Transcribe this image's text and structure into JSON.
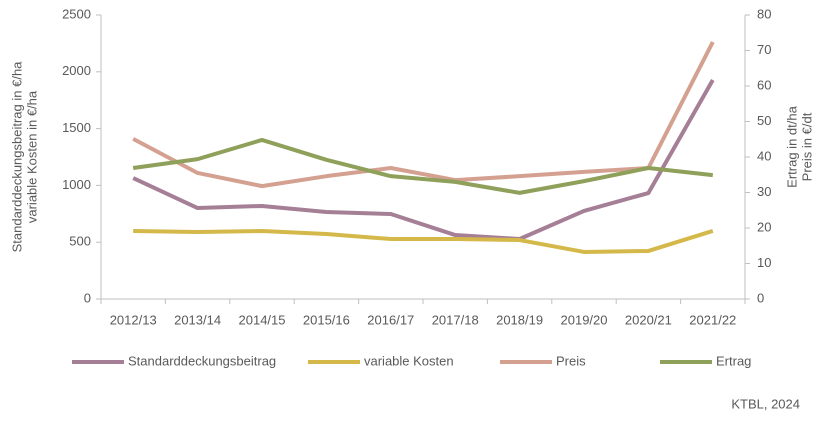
{
  "chart_data": {
    "type": "line",
    "categories": [
      "2012/13",
      "2013/14",
      "2014/15",
      "2015/16",
      "2016/17",
      "2017/18",
      "2018/19",
      "2019/20",
      "2020/21",
      "2021/22"
    ],
    "series": [
      {
        "name": "Standarddeckungsbeitrag",
        "color": "#a57f96",
        "values": [
          1065,
          801,
          819,
          766,
          748,
          563,
          528,
          775,
          933,
          1928
        ]
      },
      {
        "name": "variable Kosten",
        "color": "#d4b84a",
        "values": [
          599,
          590,
          599,
          572,
          528,
          528,
          519,
          414,
          423,
          599
        ]
      },
      {
        "name": "Preis",
        "color": "#d4a090",
        "axis": "y2",
        "values": [
          45.1,
          35.5,
          31.8,
          34.6,
          36.9,
          33.5,
          34.6,
          35.8,
          36.9,
          72.4
        ]
      },
      {
        "name": "Ertrag",
        "color": "#8fa05a",
        "axis": "y2",
        "values": [
          36.9,
          39.4,
          44.8,
          39.2,
          34.6,
          33.0,
          29.9,
          33.2,
          36.9,
          34.9
        ]
      }
    ],
    "y_label": [
      "Standarddeckungsbeitrag in €/ha",
      "variable Kosten in €/ha"
    ],
    "y2_label": [
      "Ertrag in dt/ha",
      "Preis in €/dt"
    ],
    "ylim": [
      0,
      2500
    ],
    "yticks": [
      0,
      500,
      1000,
      1500,
      2000,
      2500
    ],
    "y2lim": [
      0,
      80
    ],
    "y2ticks": [
      0,
      10,
      20,
      30,
      40,
      50,
      60,
      70,
      80
    ],
    "legend": "bottom",
    "source": "KTBL, 2024"
  }
}
